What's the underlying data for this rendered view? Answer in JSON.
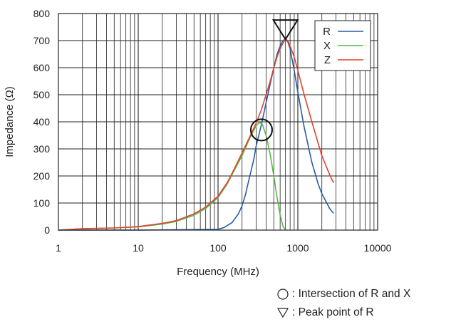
{
  "chart_data": {
    "type": "line",
    "title": "",
    "xlabel": "Frequency (MHz)",
    "ylabel": "Impedance (Ω)",
    "xscale": "log",
    "xlim": [
      1,
      10000
    ],
    "ylim": [
      0,
      800
    ],
    "x_ticks": [
      "1",
      "10",
      "100",
      "1000",
      "10000"
    ],
    "y_ticks": [
      "0",
      "100",
      "200",
      "300",
      "400",
      "500",
      "600",
      "700",
      "800"
    ],
    "grid": true,
    "legend_position": "top-right",
    "series": [
      {
        "name": "R",
        "color": "#2a5caa",
        "x": [
          1,
          10,
          100,
          120,
          150,
          180,
          200,
          220,
          250,
          280,
          300,
          350,
          400,
          450,
          500,
          550,
          600,
          650,
          700,
          750,
          800,
          900,
          1000,
          1200,
          1500,
          1800,
          2000,
          2500,
          2800
        ],
        "y": [
          0,
          0,
          3,
          10,
          28,
          60,
          90,
          130,
          200,
          260,
          310,
          390,
          470,
          540,
          600,
          650,
          680,
          700,
          705,
          695,
          670,
          590,
          510,
          380,
          250,
          170,
          135,
          80,
          62
        ]
      },
      {
        "name": "X",
        "color": "#58b848",
        "x": [
          1,
          2,
          5,
          10,
          20,
          30,
          50,
          70,
          100,
          130,
          150,
          200,
          250,
          300,
          330,
          360,
          400,
          450,
          500,
          550,
          600,
          650,
          700
        ],
        "y": [
          0,
          5,
          8,
          12,
          22,
          32,
          55,
          80,
          120,
          170,
          205,
          275,
          340,
          385,
          398,
          390,
          350,
          280,
          200,
          120,
          55,
          15,
          0
        ]
      },
      {
        "name": "Z",
        "color": "#e0432c",
        "x": [
          1,
          2,
          5,
          10,
          20,
          30,
          50,
          70,
          100,
          130,
          150,
          200,
          250,
          300,
          350,
          400,
          450,
          500,
          550,
          600,
          650,
          700,
          750,
          800,
          900,
          1000,
          1200,
          1500,
          1800,
          2000,
          2500,
          2800
        ],
        "y": [
          0,
          5,
          8,
          13,
          25,
          35,
          60,
          85,
          125,
          175,
          210,
          285,
          345,
          395,
          445,
          500,
          550,
          600,
          640,
          670,
          690,
          705,
          700,
          680,
          640,
          590,
          500,
          400,
          320,
          275,
          205,
          175
        ]
      }
    ],
    "annotations": [
      {
        "label": "Intersection of R and X",
        "x": 350,
        "y": 370,
        "marker": "circle"
      },
      {
        "label": "Peak point of R",
        "x": 700,
        "y": 705,
        "marker": "down-triangle"
      }
    ]
  },
  "notes": {
    "intersection_text": ": Intersection of R and X",
    "peak_text": ": Peak point of R"
  }
}
